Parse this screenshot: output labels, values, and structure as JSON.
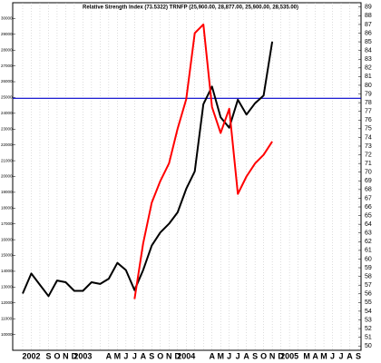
{
  "chart_data": {
    "type": "line",
    "title": "Relative Strength Index (73.5322) TRNFP (25,900.00, 28,877.00, 25,900.00, 28,535.00)",
    "categories": [
      null,
      "2002",
      null,
      "S",
      "O",
      "N",
      "D",
      "2003",
      null,
      null,
      "A",
      "M",
      "J",
      "J",
      "A",
      "S",
      "O",
      "N",
      "D",
      "2004",
      null,
      null,
      "A",
      "M",
      "J",
      "J",
      "A",
      "S",
      "O",
      "N",
      "D",
      "2005",
      null,
      "M",
      "A",
      "M",
      "J",
      "J",
      "A",
      "S"
    ],
    "series": [
      {
        "name": "TRNFP",
        "color": "#000000",
        "values": [
          12590,
          13860,
          13140,
          12430,
          13420,
          13310,
          12760,
          12760,
          13310,
          13200,
          13530,
          14530,
          14080,
          12810,
          14080,
          15630,
          16460,
          17010,
          17730,
          19220,
          20330,
          24580,
          25690,
          23750,
          23090,
          24860,
          23920,
          24640,
          25130,
          28535,
          null,
          null,
          null,
          null,
          null,
          null,
          null,
          null,
          null,
          null
        ]
      },
      {
        "name": "Relative Strength Index",
        "color": "#ff0000",
        "axis": "y2",
        "values": [
          null,
          null,
          null,
          null,
          null,
          null,
          null,
          null,
          null,
          null,
          null,
          null,
          null,
          55.4,
          61.8,
          66.5,
          69.0,
          71.0,
          75.0,
          78.4,
          86.0,
          87.0,
          77.5,
          74.5,
          77.3,
          67.5,
          69.5,
          71.0,
          72.0,
          73.5322,
          null,
          null,
          null,
          null,
          null,
          null,
          null,
          null,
          null,
          null
        ]
      }
    ],
    "ylim": [
      9000,
      31000
    ],
    "yticks": [
      10000,
      11000,
      12000,
      13000,
      14000,
      15000,
      16000,
      17000,
      18000,
      19000,
      20000,
      21000,
      22000,
      23000,
      24000,
      25000,
      26000,
      27000,
      28000,
      29000,
      30000
    ],
    "y2lim": [
      49.5,
      89.5
    ],
    "y2ticks": [
      50,
      51,
      52,
      53,
      54,
      55,
      56,
      57,
      58,
      59,
      60,
      61,
      62,
      63,
      64,
      65,
      66,
      67,
      68,
      69,
      70,
      71,
      72,
      73,
      74,
      75,
      76,
      77,
      78,
      79,
      80,
      81,
      82,
      83,
      84,
      85,
      86,
      87,
      88,
      89
    ],
    "reference_line": {
      "value": 78.5,
      "axis": "y2",
      "color": "#0000cc"
    },
    "grid": true
  }
}
